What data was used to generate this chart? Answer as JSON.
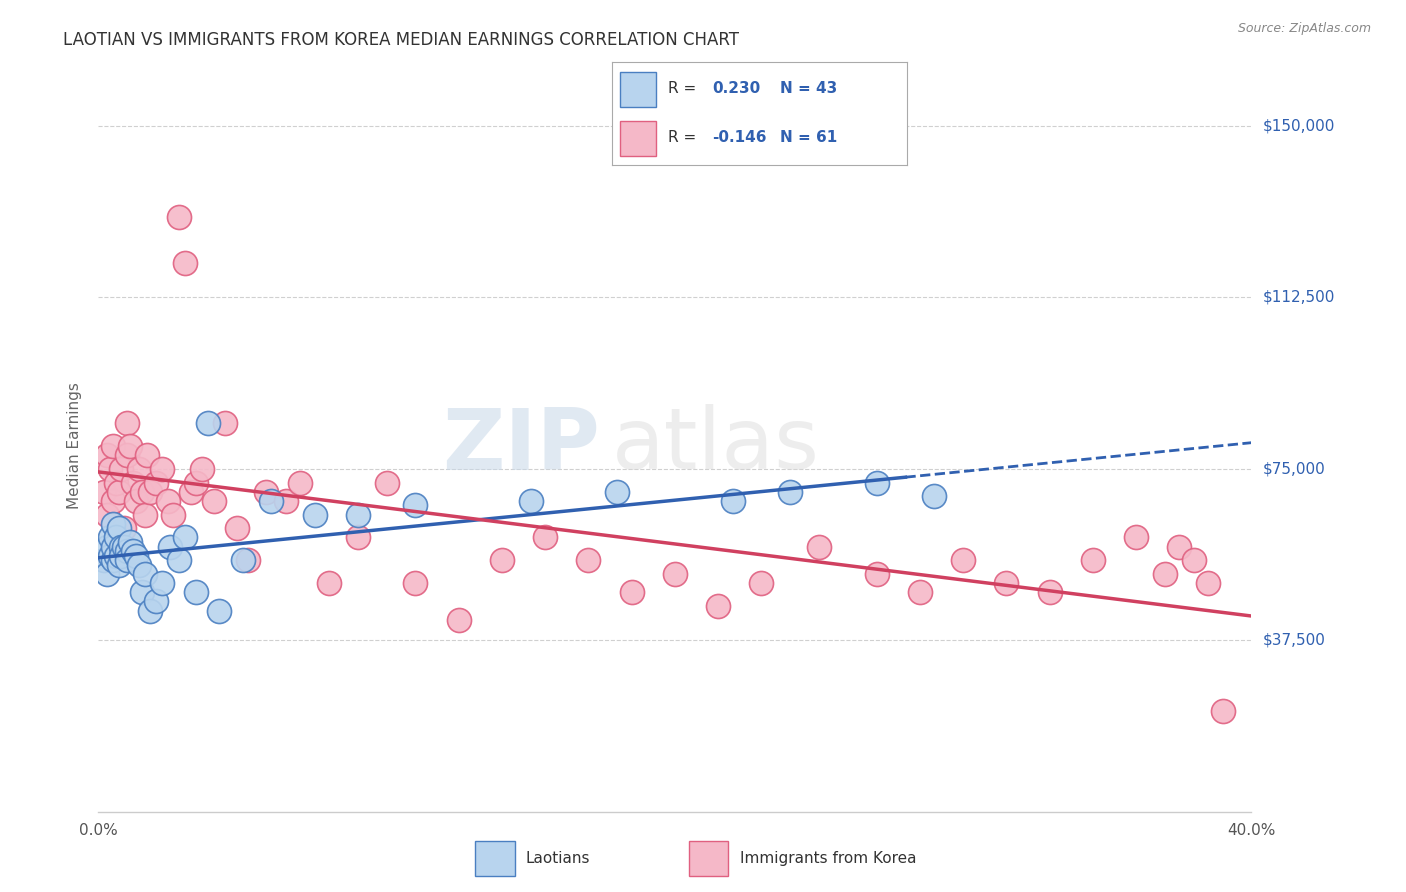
{
  "title": "LAOTIAN VS IMMIGRANTS FROM KOREA MEDIAN EARNINGS CORRELATION CHART",
  "source": "Source: ZipAtlas.com",
  "ylabel": "Median Earnings",
  "yticks": [
    0,
    37500,
    75000,
    112500,
    150000
  ],
  "ytick_labels": [
    "",
    "$37,500",
    "$75,000",
    "$112,500",
    "$150,000"
  ],
  "xmin": 0.0,
  "xmax": 0.4,
  "ymin": 0,
  "ymax": 160000,
  "r_laotian": 0.23,
  "n_laotian": 43,
  "r_korea": -0.146,
  "n_korea": 61,
  "color_laotian_fill": "#b8d4ee",
  "color_korea_fill": "#f5b8c8",
  "color_laotian_edge": "#4a7fc1",
  "color_korea_edge": "#e06080",
  "line_color_laotian": "#3060b0",
  "line_color_korea": "#d04060",
  "watermark_zip": "ZIP",
  "watermark_atlas": "atlas",
  "laotian_x": [
    0.002,
    0.003,
    0.003,
    0.004,
    0.004,
    0.005,
    0.005,
    0.005,
    0.006,
    0.006,
    0.007,
    0.007,
    0.008,
    0.008,
    0.009,
    0.01,
    0.01,
    0.011,
    0.012,
    0.013,
    0.014,
    0.015,
    0.016,
    0.018,
    0.02,
    0.022,
    0.025,
    0.028,
    0.03,
    0.034,
    0.038,
    0.042,
    0.05,
    0.06,
    0.075,
    0.09,
    0.11,
    0.15,
    0.18,
    0.22,
    0.24,
    0.27,
    0.29
  ],
  "laotian_y": [
    55000,
    58000,
    52000,
    60000,
    56000,
    55000,
    63000,
    58000,
    56000,
    60000,
    54000,
    62000,
    58000,
    56000,
    58000,
    57000,
    55000,
    59000,
    57000,
    56000,
    54000,
    48000,
    52000,
    44000,
    46000,
    50000,
    58000,
    55000,
    60000,
    48000,
    85000,
    44000,
    55000,
    68000,
    65000,
    65000,
    67000,
    68000,
    70000,
    68000,
    70000,
    72000,
    69000
  ],
  "korea_x": [
    0.002,
    0.003,
    0.003,
    0.004,
    0.005,
    0.005,
    0.006,
    0.007,
    0.008,
    0.009,
    0.01,
    0.01,
    0.011,
    0.012,
    0.013,
    0.014,
    0.015,
    0.016,
    0.017,
    0.018,
    0.02,
    0.022,
    0.024,
    0.026,
    0.028,
    0.03,
    0.032,
    0.034,
    0.036,
    0.04,
    0.044,
    0.048,
    0.052,
    0.058,
    0.065,
    0.07,
    0.08,
    0.09,
    0.1,
    0.11,
    0.125,
    0.14,
    0.155,
    0.17,
    0.185,
    0.2,
    0.215,
    0.23,
    0.25,
    0.27,
    0.285,
    0.3,
    0.315,
    0.33,
    0.345,
    0.36,
    0.37,
    0.375,
    0.38,
    0.385,
    0.39
  ],
  "korea_y": [
    70000,
    65000,
    78000,
    75000,
    68000,
    80000,
    72000,
    70000,
    75000,
    62000,
    78000,
    85000,
    80000,
    72000,
    68000,
    75000,
    70000,
    65000,
    78000,
    70000,
    72000,
    75000,
    68000,
    65000,
    130000,
    120000,
    70000,
    72000,
    75000,
    68000,
    85000,
    62000,
    55000,
    70000,
    68000,
    72000,
    50000,
    60000,
    72000,
    50000,
    42000,
    55000,
    60000,
    55000,
    48000,
    52000,
    45000,
    50000,
    58000,
    52000,
    48000,
    55000,
    50000,
    48000,
    55000,
    60000,
    52000,
    58000,
    55000,
    50000,
    22000
  ]
}
